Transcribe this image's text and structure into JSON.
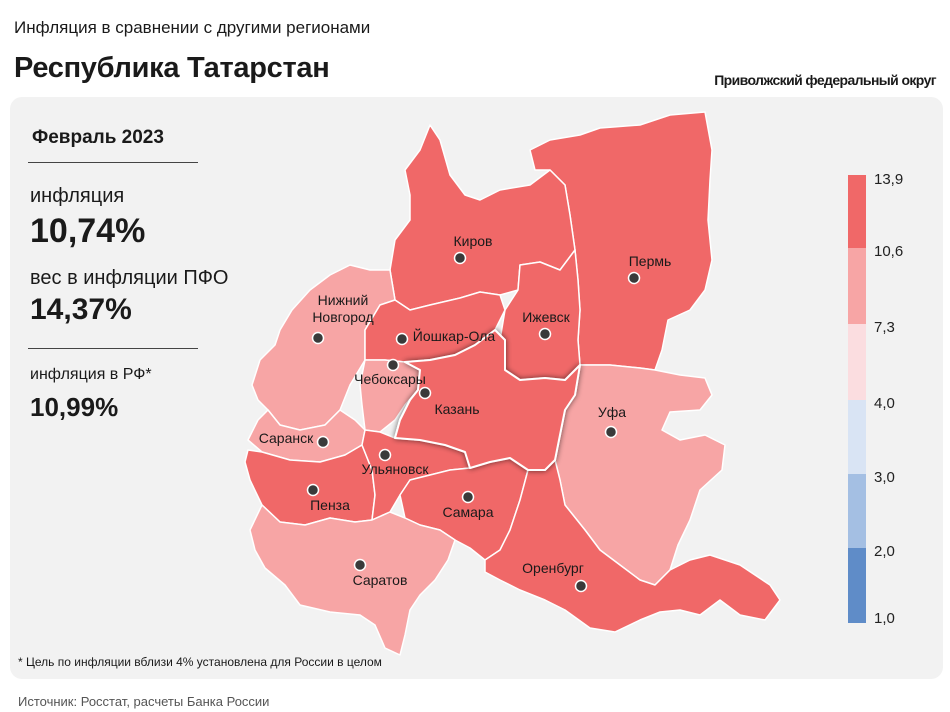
{
  "header": {
    "subtitle": "Инфляция в сравнении с другими регионами",
    "title": "Республика Татарстан",
    "district": "Приволжский федеральный округ"
  },
  "stats": {
    "month": "Февраль 2023",
    "inflation_label": "инфляция",
    "inflation_value": "10,74%",
    "weight_label": "вес в инфляции  ПФО",
    "weight_value": "14,37%",
    "rf_label": "инфляция  в РФ*",
    "rf_value": "10,99%"
  },
  "legend": {
    "labels": [
      "13,9",
      "10,6",
      "7,3",
      "4,0",
      "3,0",
      "2,0",
      "1,0"
    ],
    "colors": [
      "#f06868",
      "#f7a5a5",
      "#fbdde0",
      "#d9e4f4",
      "#a4bfe3",
      "#5f8cc8"
    ]
  },
  "map": {
    "highlighted_region": "Казань",
    "colors": {
      "high": "#f06868",
      "mid": "#f7a5a5",
      "border": "#ffffff"
    },
    "cities": [
      {
        "name": "Киров",
        "lines": [
          "Киров"
        ]
      },
      {
        "name": "Пермь",
        "lines": [
          "Пермь"
        ]
      },
      {
        "name": "Нижний Новгород",
        "lines": [
          "Нижний",
          "Новгород"
        ]
      },
      {
        "name": "Йошкар-Ола",
        "lines": [
          "Йошкар-Ола"
        ]
      },
      {
        "name": "Ижевск",
        "lines": [
          "Ижевск"
        ]
      },
      {
        "name": "Чебоксары",
        "lines": [
          "Чебоксары"
        ]
      },
      {
        "name": "Казань",
        "lines": [
          "Казань"
        ]
      },
      {
        "name": "Уфа",
        "lines": [
          "Уфа"
        ]
      },
      {
        "name": "Саранск",
        "lines": [
          "Саранск"
        ]
      },
      {
        "name": "Ульяновск",
        "lines": [
          "Ульяновск"
        ]
      },
      {
        "name": "Пенза",
        "lines": [
          "Пенза"
        ]
      },
      {
        "name": "Самара",
        "lines": [
          "Самара"
        ]
      },
      {
        "name": "Оренбург",
        "lines": [
          "Оренбург"
        ]
      },
      {
        "name": "Саратов",
        "lines": [
          "Саратов"
        ]
      }
    ]
  },
  "footnote": "* Цель по инфляции  вблизи 4% установлена для России в целом",
  "source": "Источник: Росстат, расчеты Банка России"
}
